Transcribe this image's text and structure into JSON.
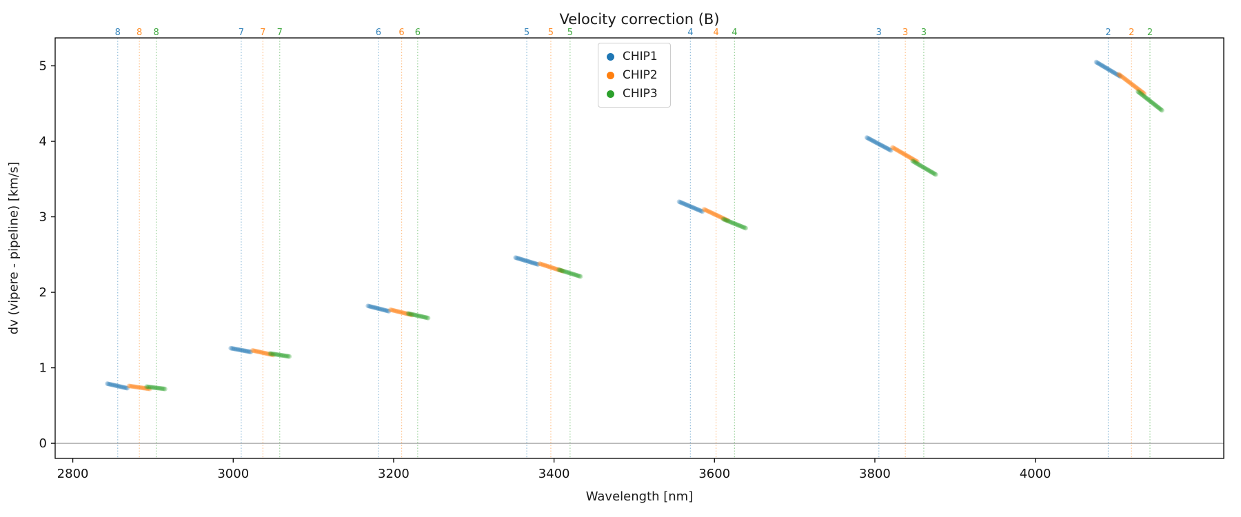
{
  "chart_data": {
    "type": "scatter",
    "title": "Velocity correction (B)",
    "xlabel": "Wavelength [nm]",
    "ylabel": "dv (vipere - pipeline) [km/s]",
    "xlim": [
      2778,
      4235
    ],
    "ylim": [
      -0.2,
      5.37
    ],
    "xticks": [
      2800,
      3000,
      3200,
      3400,
      3600,
      3800,
      4000
    ],
    "yticks": [
      0,
      1,
      2,
      3,
      4,
      5
    ],
    "hline_y": 0,
    "grid": false,
    "legend_position": "upper center inside",
    "series": [
      {
        "name": "CHIP1",
        "color": "#1f77b4"
      },
      {
        "name": "CHIP2",
        "color": "#ff7f0e"
      },
      {
        "name": "CHIP3",
        "color": "#2ca02c"
      }
    ],
    "orders": [
      {
        "order": 8,
        "chips": [
          {
            "series": "CHIP1",
            "vline_x": 2856,
            "x": [
              2843,
              2868
            ],
            "y": [
              0.79,
              0.73
            ]
          },
          {
            "series": "CHIP2",
            "vline_x": 2883,
            "x": [
              2870,
              2896
            ],
            "y": [
              0.76,
              0.72
            ]
          },
          {
            "series": "CHIP3",
            "vline_x": 2904,
            "x": [
              2892,
              2915
            ],
            "y": [
              0.75,
              0.72
            ]
          }
        ]
      },
      {
        "order": 7,
        "chips": [
          {
            "series": "CHIP1",
            "vline_x": 3010,
            "x": [
              2997,
              3022
            ],
            "y": [
              1.26,
              1.21
            ]
          },
          {
            "series": "CHIP2",
            "vline_x": 3037,
            "x": [
              3024,
              3050
            ],
            "y": [
              1.23,
              1.17
            ]
          },
          {
            "series": "CHIP3",
            "vline_x": 3058,
            "x": [
              3046,
              3070
            ],
            "y": [
              1.19,
              1.15
            ]
          }
        ]
      },
      {
        "order": 6,
        "chips": [
          {
            "series": "CHIP1",
            "vline_x": 3181,
            "x": [
              3168,
              3194
            ],
            "y": [
              1.82,
              1.75
            ]
          },
          {
            "series": "CHIP2",
            "vline_x": 3210,
            "x": [
              3196,
              3223
            ],
            "y": [
              1.77,
              1.7
            ]
          },
          {
            "series": "CHIP3",
            "vline_x": 3230,
            "x": [
              3218,
              3243
            ],
            "y": [
              1.72,
              1.66
            ]
          }
        ]
      },
      {
        "order": 5,
        "chips": [
          {
            "series": "CHIP1",
            "vline_x": 3366,
            "x": [
              3352,
              3380
            ],
            "y": [
              2.46,
              2.37
            ]
          },
          {
            "series": "CHIP2",
            "vline_x": 3396,
            "x": [
              3382,
              3411
            ],
            "y": [
              2.38,
              2.28
            ]
          },
          {
            "series": "CHIP3",
            "vline_x": 3420,
            "x": [
              3406,
              3433
            ],
            "y": [
              2.3,
              2.21
            ]
          }
        ]
      },
      {
        "order": 4,
        "chips": [
          {
            "series": "CHIP1",
            "vline_x": 3570,
            "x": [
              3556,
              3585
            ],
            "y": [
              3.2,
              3.07
            ]
          },
          {
            "series": "CHIP2",
            "vline_x": 3602,
            "x": [
              3587,
              3617
            ],
            "y": [
              3.1,
              2.95
            ]
          },
          {
            "series": "CHIP3",
            "vline_x": 3625,
            "x": [
              3611,
              3639
            ],
            "y": [
              2.97,
              2.85
            ]
          }
        ]
      },
      {
        "order": 3,
        "chips": [
          {
            "series": "CHIP1",
            "vline_x": 3805,
            "x": [
              3790,
              3820
            ],
            "y": [
              4.05,
              3.88
            ]
          },
          {
            "series": "CHIP2",
            "vline_x": 3838,
            "x": [
              3822,
              3853
            ],
            "y": [
              3.92,
              3.73
            ]
          },
          {
            "series": "CHIP3",
            "vline_x": 3861,
            "x": [
              3847,
              3876
            ],
            "y": [
              3.74,
              3.56
            ]
          }
        ]
      },
      {
        "order": 2,
        "chips": [
          {
            "series": "CHIP1",
            "vline_x": 4091,
            "x": [
              4076,
              4106
            ],
            "y": [
              5.05,
              4.86
            ]
          },
          {
            "series": "CHIP2",
            "vline_x": 4120,
            "x": [
              4104,
              4136
            ],
            "y": [
              4.89,
              4.63
            ]
          },
          {
            "series": "CHIP3",
            "vline_x": 4143,
            "x": [
              4128,
              4158
            ],
            "y": [
              4.66,
              4.41
            ]
          }
        ]
      }
    ]
  }
}
